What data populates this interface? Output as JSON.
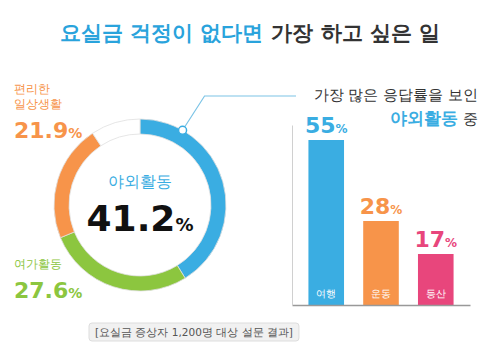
{
  "title": [
    "요실금 걱정이 없다면",
    "가장 하고 싶은 일"
  ],
  "note": "[요실금 증상자 1,200명 대상 설문 결과]",
  "chart_data": [
    {
      "type": "donut",
      "categories": [
        "야외활동",
        "여가활동",
        "편리한 일상생활",
        null
      ],
      "values": [
        41.2,
        27.6,
        21.9,
        9.3
      ],
      "value_labels": [
        "41.2%",
        "27.6%",
        "21.9%",
        null
      ],
      "colors": [
        "#3aade2",
        "#8cc63f",
        "#f7944a",
        "#ffffff"
      ],
      "data_labels": true
    },
    {
      "type": "bar",
      "annotation": [
        "가장 많은 응답률을 보인",
        "야외활동",
        "중"
      ],
      "categories": [
        "여행",
        "운동",
        "등산"
      ],
      "values": [
        55,
        28,
        17
      ],
      "value_labels": [
        "55%",
        "28%",
        "17%"
      ],
      "colors": [
        "#3aade2",
        "#f7944a",
        "#e8467c"
      ],
      "ylim": [
        0,
        60
      ],
      "tick_labels": false,
      "data_labels": true
    }
  ]
}
